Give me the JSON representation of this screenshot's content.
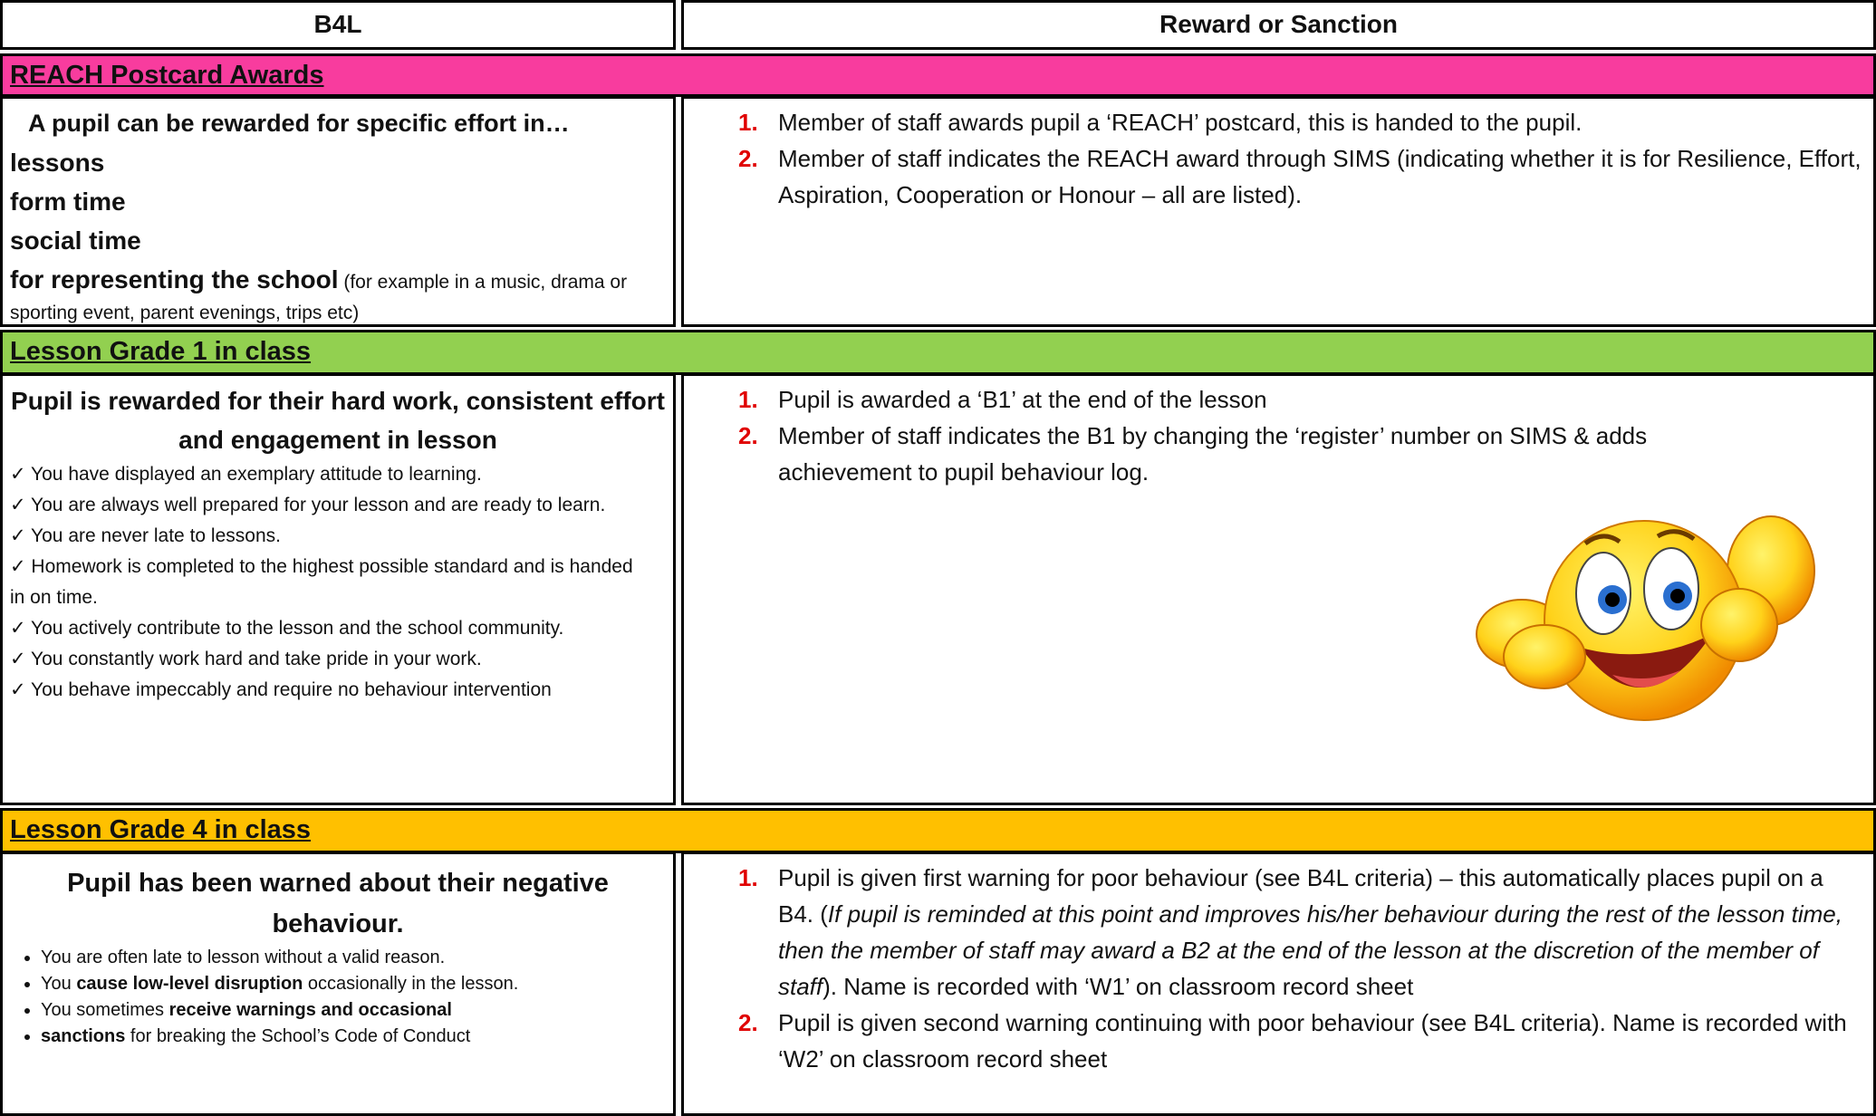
{
  "header": [
    "B4L",
    "Reward or Sanction"
  ],
  "sections": [
    {
      "title": "REACH Postcard Awards",
      "left": {
        "heading": "A pupil can be rewarded for specific effort in…",
        "items": [
          "lessons",
          "form time",
          "social time"
        ],
        "last_item": {
          "bold": "for representing the school",
          "note": " (for example in a music, drama or sporting event, parent evenings, trips etc)"
        }
      },
      "steps": [
        {
          "number": "1.",
          "text": "Member of staff awards pupil a ‘REACH’ postcard, this is handed to the pupil."
        },
        {
          "number": "2.",
          "text": "Member of staff indicates the REACH award through SIMS (indicating whether it is for Resilience, Effort, Aspiration, Cooperation or Honour – all are listed)."
        }
      ]
    },
    {
      "title": "Lesson Grade 1 in class",
      "left": {
        "heading": "Pupil is rewarded for their hard work, consistent effort and engagement in lesson",
        "lines": [
          "✓ You have displayed an exemplary attitude to learning.",
          "✓ You are always well prepared for your lesson and are ready to learn.",
          "✓ You are never late to lessons.",
          "✓ Homework is completed to the highest possible standard and is handed",
          "in on time.",
          "✓ You actively contribute to the lesson and the school community.",
          "✓ You constantly work hard and take pride in your work.",
          "✓ You behave impeccably and require no behaviour intervention"
        ]
      },
      "steps": [
        {
          "number": "1.",
          "text": "Pupil is awarded a ‘B1’ at the end of the lesson"
        },
        {
          "number": "2.",
          "text": "Member of staff indicates the B1 by changing the ‘register’ number on SIMS & adds achievement to pupil behaviour log."
        }
      ]
    },
    {
      "title": "Lesson Grade 4 in class",
      "left": {
        "heading": "Pupil has been warned about their negative behaviour.",
        "bullets": [
          [
            "You are often late to lesson without a valid reason."
          ],
          [
            "You ",
            "cause low-level disruption",
            " occasionally in the lesson."
          ],
          [
            "You sometimes ",
            "receive warnings and occasional"
          ],
          [
            "",
            "sanctions",
            " for breaking the School’s Code of Conduct"
          ]
        ]
      },
      "steps": [
        {
          "number": "1.",
          "parts": [
            "Pupil is given first warning for poor behaviour (see B4L criteria) – this automatically places pupil on a B4. (",
            "If pupil is reminded at this point and improves his/her behaviour during the rest of the lesson time, then the member of staff may award a B2 at the end of the lesson at the discretion of the member of staff",
            "). Name is recorded with ‘W1’ on classroom record sheet"
          ]
        },
        {
          "number": "2.",
          "text": "Pupil is given second warning continuing with poor behaviour (see B4L criteria). Name is recorded with ‘W2’ on classroom record sheet"
        }
      ]
    }
  ]
}
